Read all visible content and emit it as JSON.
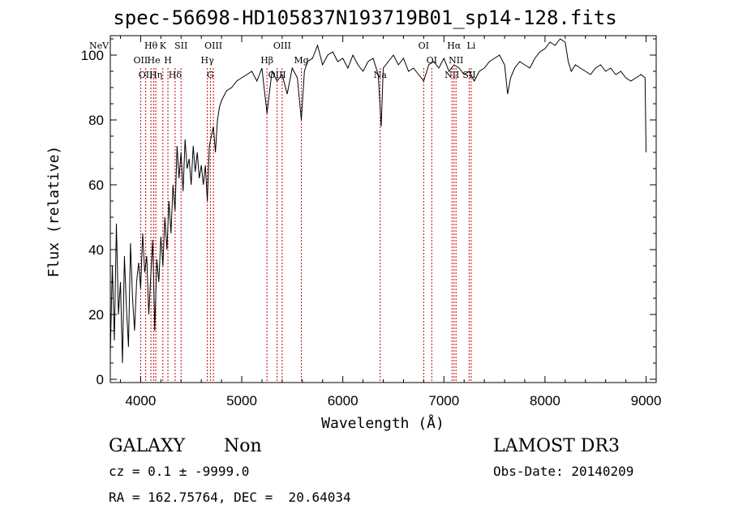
{
  "title": "spec-56698-HD105837N193719B01_sp14-128.fits",
  "info": {
    "object_class": "GALAXY",
    "subclass": "Non",
    "cz": "cz = 0.1 ± -9999.0",
    "coords": "RA = 162.75764, DEC =  20.64034",
    "survey": "LAMOST DR3",
    "obs_date": "Obs-Date: 20140209"
  },
  "chart_data": {
    "type": "line",
    "title": "spec-56698-HD105837N193719B01_sp14-128.fits",
    "xlabel": "Wavelength (Å)",
    "ylabel": "Flux (relative)",
    "xlim": [
      3700,
      9100
    ],
    "ylim": [
      -1,
      106
    ],
    "xticks": [
      4000,
      5000,
      6000,
      7000,
      8000,
      9000
    ],
    "yticks": [
      0,
      20,
      40,
      60,
      80,
      100
    ],
    "line_color": "#000000",
    "marker_color": "#cc0000",
    "series": [
      {
        "x": [
          3700,
          3720,
          3740,
          3760,
          3780,
          3800,
          3820,
          3840,
          3860,
          3880,
          3900,
          3920,
          3940,
          3960,
          3980,
          4000,
          4020,
          4040,
          4060,
          4080,
          4100,
          4120,
          4140,
          4160,
          4180,
          4200,
          4220,
          4240,
          4260,
          4280,
          4300,
          4320,
          4340,
          4360,
          4380,
          4400,
          4420,
          4440,
          4460,
          4480,
          4500,
          4520,
          4540,
          4560,
          4580,
          4600,
          4620,
          4640,
          4660,
          4680,
          4700,
          4720,
          4740,
          4760,
          4780,
          4800,
          4850,
          4900,
          4950,
          5000,
          5050,
          5100,
          5150,
          5200,
          5250,
          5280,
          5300,
          5350,
          5400,
          5450,
          5500,
          5550,
          5590,
          5620,
          5650,
          5700,
          5750,
          5800,
          5850,
          5900,
          5950,
          6000,
          6050,
          6100,
          6150,
          6200,
          6250,
          6300,
          6350,
          6380,
          6400,
          6450,
          6500,
          6550,
          6600,
          6650,
          6700,
          6750,
          6800,
          6850,
          6900,
          6950,
          7000,
          7050,
          7100,
          7150,
          7200,
          7250,
          7300,
          7350,
          7400,
          7450,
          7500,
          7550,
          7600,
          7630,
          7660,
          7700,
          7750,
          7800,
          7850,
          7900,
          7950,
          8000,
          8050,
          8100,
          8150,
          8200,
          8230,
          8260,
          8300,
          8350,
          8400,
          8450,
          8500,
          8550,
          8600,
          8650,
          8700,
          8750,
          8800,
          8850,
          8900,
          8950,
          8990,
          9000
        ],
        "y": [
          8,
          35,
          12,
          48,
          20,
          30,
          5,
          38,
          22,
          10,
          42,
          25,
          15,
          30,
          36,
          28,
          45,
          33,
          38,
          20,
          32,
          43,
          15,
          37,
          30,
          44,
          35,
          50,
          40,
          55,
          45,
          60,
          52,
          72,
          62,
          70,
          58,
          74,
          65,
          68,
          60,
          72,
          64,
          70,
          62,
          66,
          60,
          66,
          55,
          72,
          75,
          78,
          70,
          80,
          84,
          86,
          89,
          90,
          92,
          93,
          94,
          95,
          92,
          96,
          82,
          90,
          95,
          92,
          94,
          88,
          96,
          93,
          80,
          95,
          98,
          99,
          103,
          97,
          100,
          101,
          98,
          99,
          96,
          100,
          97,
          95,
          98,
          99,
          94,
          78,
          96,
          98,
          100,
          97,
          99,
          95,
          96,
          94,
          92,
          97,
          98,
          96,
          99,
          95,
          97,
          96,
          94,
          95,
          92,
          95,
          96,
          98,
          99,
          100,
          97,
          88,
          93,
          96,
          98,
          97,
          96,
          99,
          101,
          102,
          104,
          103,
          105,
          104,
          98,
          95,
          97,
          96,
          95,
          94,
          96,
          97,
          95,
          96,
          94,
          95,
          93,
          92,
          93,
          94,
          93,
          70
        ]
      }
    ],
    "lines": [
      {
        "x": 3426,
        "label": "NeV"
      },
      {
        "x": 4000,
        "label": "OII"
      },
      {
        "x": 4050,
        "label": "OII"
      },
      {
        "x": 4102,
        "label": "Hθ"
      },
      {
        "x": 4130,
        "label": "He"
      },
      {
        "x": 4150,
        "label": "Hη"
      },
      {
        "x": 4220,
        "label": "K"
      },
      {
        "x": 4270,
        "label": "H"
      },
      {
        "x": 4341,
        "label": "Hδ"
      },
      {
        "x": 4400,
        "label": "SII"
      },
      {
        "x": 4660,
        "label": "Hγ"
      },
      {
        "x": 4690,
        "label": "G"
      },
      {
        "x": 4720,
        "label": "OIII"
      },
      {
        "x": 5250,
        "label": "Hβ"
      },
      {
        "x": 5350,
        "label": "OIII"
      },
      {
        "x": 5400,
        "label": "OIII"
      },
      {
        "x": 5590,
        "label": "Mg"
      },
      {
        "x": 6370,
        "label": "Na"
      },
      {
        "x": 6800,
        "label": "OI"
      },
      {
        "x": 6880,
        "label": "OI"
      },
      {
        "x": 7080,
        "label": "NII"
      },
      {
        "x": 7100,
        "label": "Hα"
      },
      {
        "x": 7120,
        "label": "NII"
      },
      {
        "x": 7250,
        "label": "SII"
      },
      {
        "x": 7270,
        "label": "Li"
      }
    ]
  }
}
